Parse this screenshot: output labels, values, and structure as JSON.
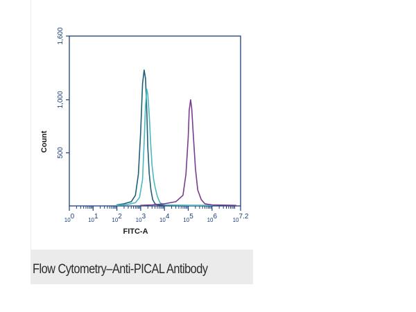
{
  "caption": "Flow Cytometry–Anti-PICAL Antibody",
  "colors": {
    "axis": "#1a3d7a",
    "background": "#ffffff",
    "caption_bar": "#ebebeb"
  },
  "chart_data": {
    "type": "line",
    "title": "",
    "xlabel": "FITC-A",
    "ylabel": "Count",
    "x_scale": "log",
    "xlim": [
      1,
      15848931.92
    ],
    "ylim": [
      0,
      1600
    ],
    "x_ticks": [
      {
        "value": 1,
        "base": "10",
        "exp": "0"
      },
      {
        "value": 10,
        "base": "10",
        "exp": "1"
      },
      {
        "value": 100,
        "base": "10",
        "exp": "2"
      },
      {
        "value": 1000,
        "base": "10",
        "exp": "3"
      },
      {
        "value": 10000,
        "base": "10",
        "exp": "4"
      },
      {
        "value": 100000,
        "base": "10",
        "exp": "5"
      },
      {
        "value": 1000000,
        "base": "10",
        "exp": "6"
      },
      {
        "value": 15848931.92,
        "base": "10",
        "exp": "7.2"
      }
    ],
    "y_ticks": [
      {
        "value": 500,
        "label": "500"
      },
      {
        "value": 1000,
        "label": "1,000"
      },
      {
        "value": 1600,
        "label": "1,600"
      }
    ],
    "grid": false,
    "series": [
      {
        "color": "#1d5e78",
        "x": [
          100,
          200,
          400,
          600,
          800,
          1000,
          1200,
          1400,
          1600,
          1800,
          2000,
          2300,
          2700,
          3200,
          4000,
          5000,
          10000,
          100000,
          1000000
        ],
        "y": [
          10,
          20,
          40,
          100,
          300,
          700,
          1150,
          1280,
          1200,
          900,
          550,
          300,
          150,
          60,
          20,
          10,
          5,
          5,
          5
        ]
      },
      {
        "color": "#48b9c0",
        "x": [
          100,
          300,
          600,
          900,
          1200,
          1400,
          1600,
          1800,
          2000,
          2300,
          2600,
          3000,
          3500,
          4000,
          5000,
          6500,
          10000,
          100000,
          1000000
        ],
        "y": [
          5,
          15,
          30,
          80,
          250,
          600,
          950,
          1100,
          1050,
          850,
          600,
          380,
          250,
          180,
          90,
          30,
          10,
          5,
          5
        ]
      },
      {
        "color": "#7b3a8e",
        "x": [
          1000,
          3000,
          10000,
          30000,
          60000,
          80000,
          100000,
          110000,
          125000,
          140000,
          160000,
          200000,
          250000,
          350000,
          500000,
          1000000,
          10000000
        ],
        "y": [
          5,
          10,
          20,
          40,
          100,
          300,
          650,
          900,
          1000,
          920,
          700,
          350,
          150,
          60,
          20,
          10,
          5
        ]
      }
    ]
  }
}
